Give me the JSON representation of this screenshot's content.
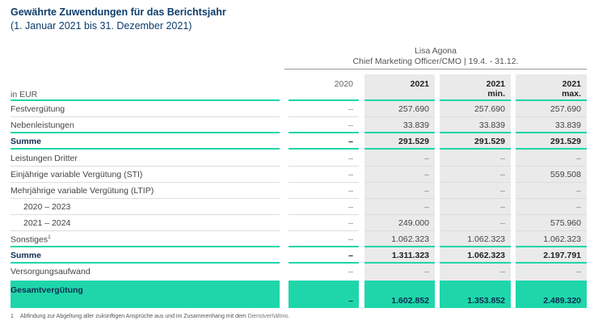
{
  "header": {
    "title": "Gewährte Zuwendungen für das Berichtsjahr",
    "subtitle": "(1. Januar 2021 bis 31. Dezember 2021)",
    "person_name": "Lisa Agona",
    "person_role": "Chief Marketing Officer/CMO | 19.4. -  31.12.",
    "unit_label": "in EUR"
  },
  "columns": [
    {
      "line1": "2020",
      "line2": ""
    },
    {
      "line1": "2021",
      "line2": ""
    },
    {
      "line1": "2021",
      "line2": "min."
    },
    {
      "line1": "2021",
      "line2": "max."
    }
  ],
  "rows": [
    {
      "label": "Festvergütung",
      "values": [
        "–",
        "257.690",
        "257.690",
        "257.690"
      ]
    },
    {
      "label": "Nebenleistungen",
      "values": [
        "–",
        "33.839",
        "33.839",
        "33.839"
      ]
    },
    {
      "label": "Summe",
      "values": [
        "–",
        "291.529",
        "291.529",
        "291.529"
      ]
    },
    {
      "label": "Leistungen Dritter",
      "values": [
        "–",
        "–",
        "–",
        "–"
      ]
    },
    {
      "label": "Einjährige variable Vergütung (STI)",
      "values": [
        "–",
        "–",
        "–",
        "559.508"
      ]
    },
    {
      "label": "Mehrjährige variable Vergütung (LTIP)",
      "values": [
        "–",
        "–",
        "–",
        "–"
      ]
    },
    {
      "label": "2020 – 2023",
      "values": [
        "–",
        "–",
        "–",
        "–"
      ]
    },
    {
      "label": "2021 – 2024",
      "values": [
        "–",
        "249.000",
        "–",
        "575.960"
      ]
    },
    {
      "label": "Sonstiges",
      "footnote_mark": "1",
      "values": [
        "–",
        "1.062.323",
        "1.062.323",
        "1.062.323"
      ]
    },
    {
      "label": "Summe",
      "values": [
        "–",
        "1.311.323",
        "1.062.323",
        "2.197.791"
      ]
    },
    {
      "label": "Versorgungsaufwand",
      "values": [
        "–",
        "–",
        "–",
        "–"
      ]
    }
  ],
  "total": {
    "label": "Gesamtvergütung",
    "values": [
      "–",
      "1.602.852",
      "1.353.852",
      "2.489.320"
    ]
  },
  "footnote": {
    "mark": "1",
    "text": "Abfindung zur Abgeltung aller zukünftigen Ansprüche aus und im Zusammenhang mit dem",
    "link": "Dienstverhältnis."
  }
}
